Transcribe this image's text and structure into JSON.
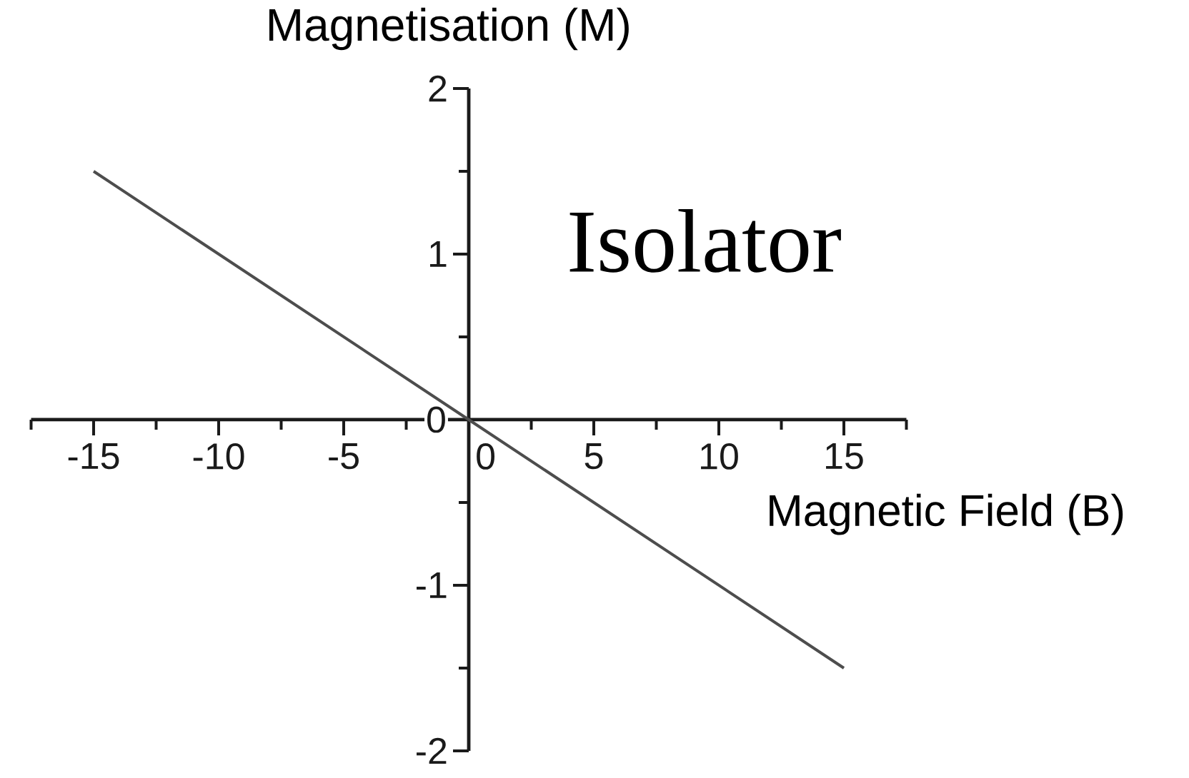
{
  "chart_data": {
    "type": "line",
    "xlabel": "Magnetic Field (B)",
    "ylabel": "Magnetisation (M)",
    "annotations": [
      "Isolator"
    ],
    "x": [
      -15,
      0,
      15
    ],
    "values": [
      1.5,
      0,
      -1.5
    ],
    "color": "#4d4d4d",
    "line_style": "solid",
    "xlim": [
      -17.5,
      17.5
    ],
    "ylim": [
      -2,
      2
    ],
    "xticks": [
      {
        "value": -17.5,
        "label": null
      },
      -15,
      {
        "value": -12.5,
        "label": null
      },
      -10,
      {
        "value": -7.5,
        "label": null
      },
      -5,
      {
        "value": -2.5,
        "label": null
      },
      0,
      {
        "value": 2.5,
        "label": null
      },
      5,
      {
        "value": 7.5,
        "label": null
      },
      10,
      {
        "value": 12.5,
        "label": null
      },
      15,
      {
        "value": 17.5,
        "label": null
      }
    ],
    "yticks": [
      -2,
      {
        "value": -1.5,
        "label": null
      },
      -1,
      {
        "value": -0.5,
        "label": null
      },
      0,
      {
        "value": 0.5,
        "label": null
      },
      1,
      {
        "value": 1.5,
        "label": null
      },
      2
    ]
  }
}
